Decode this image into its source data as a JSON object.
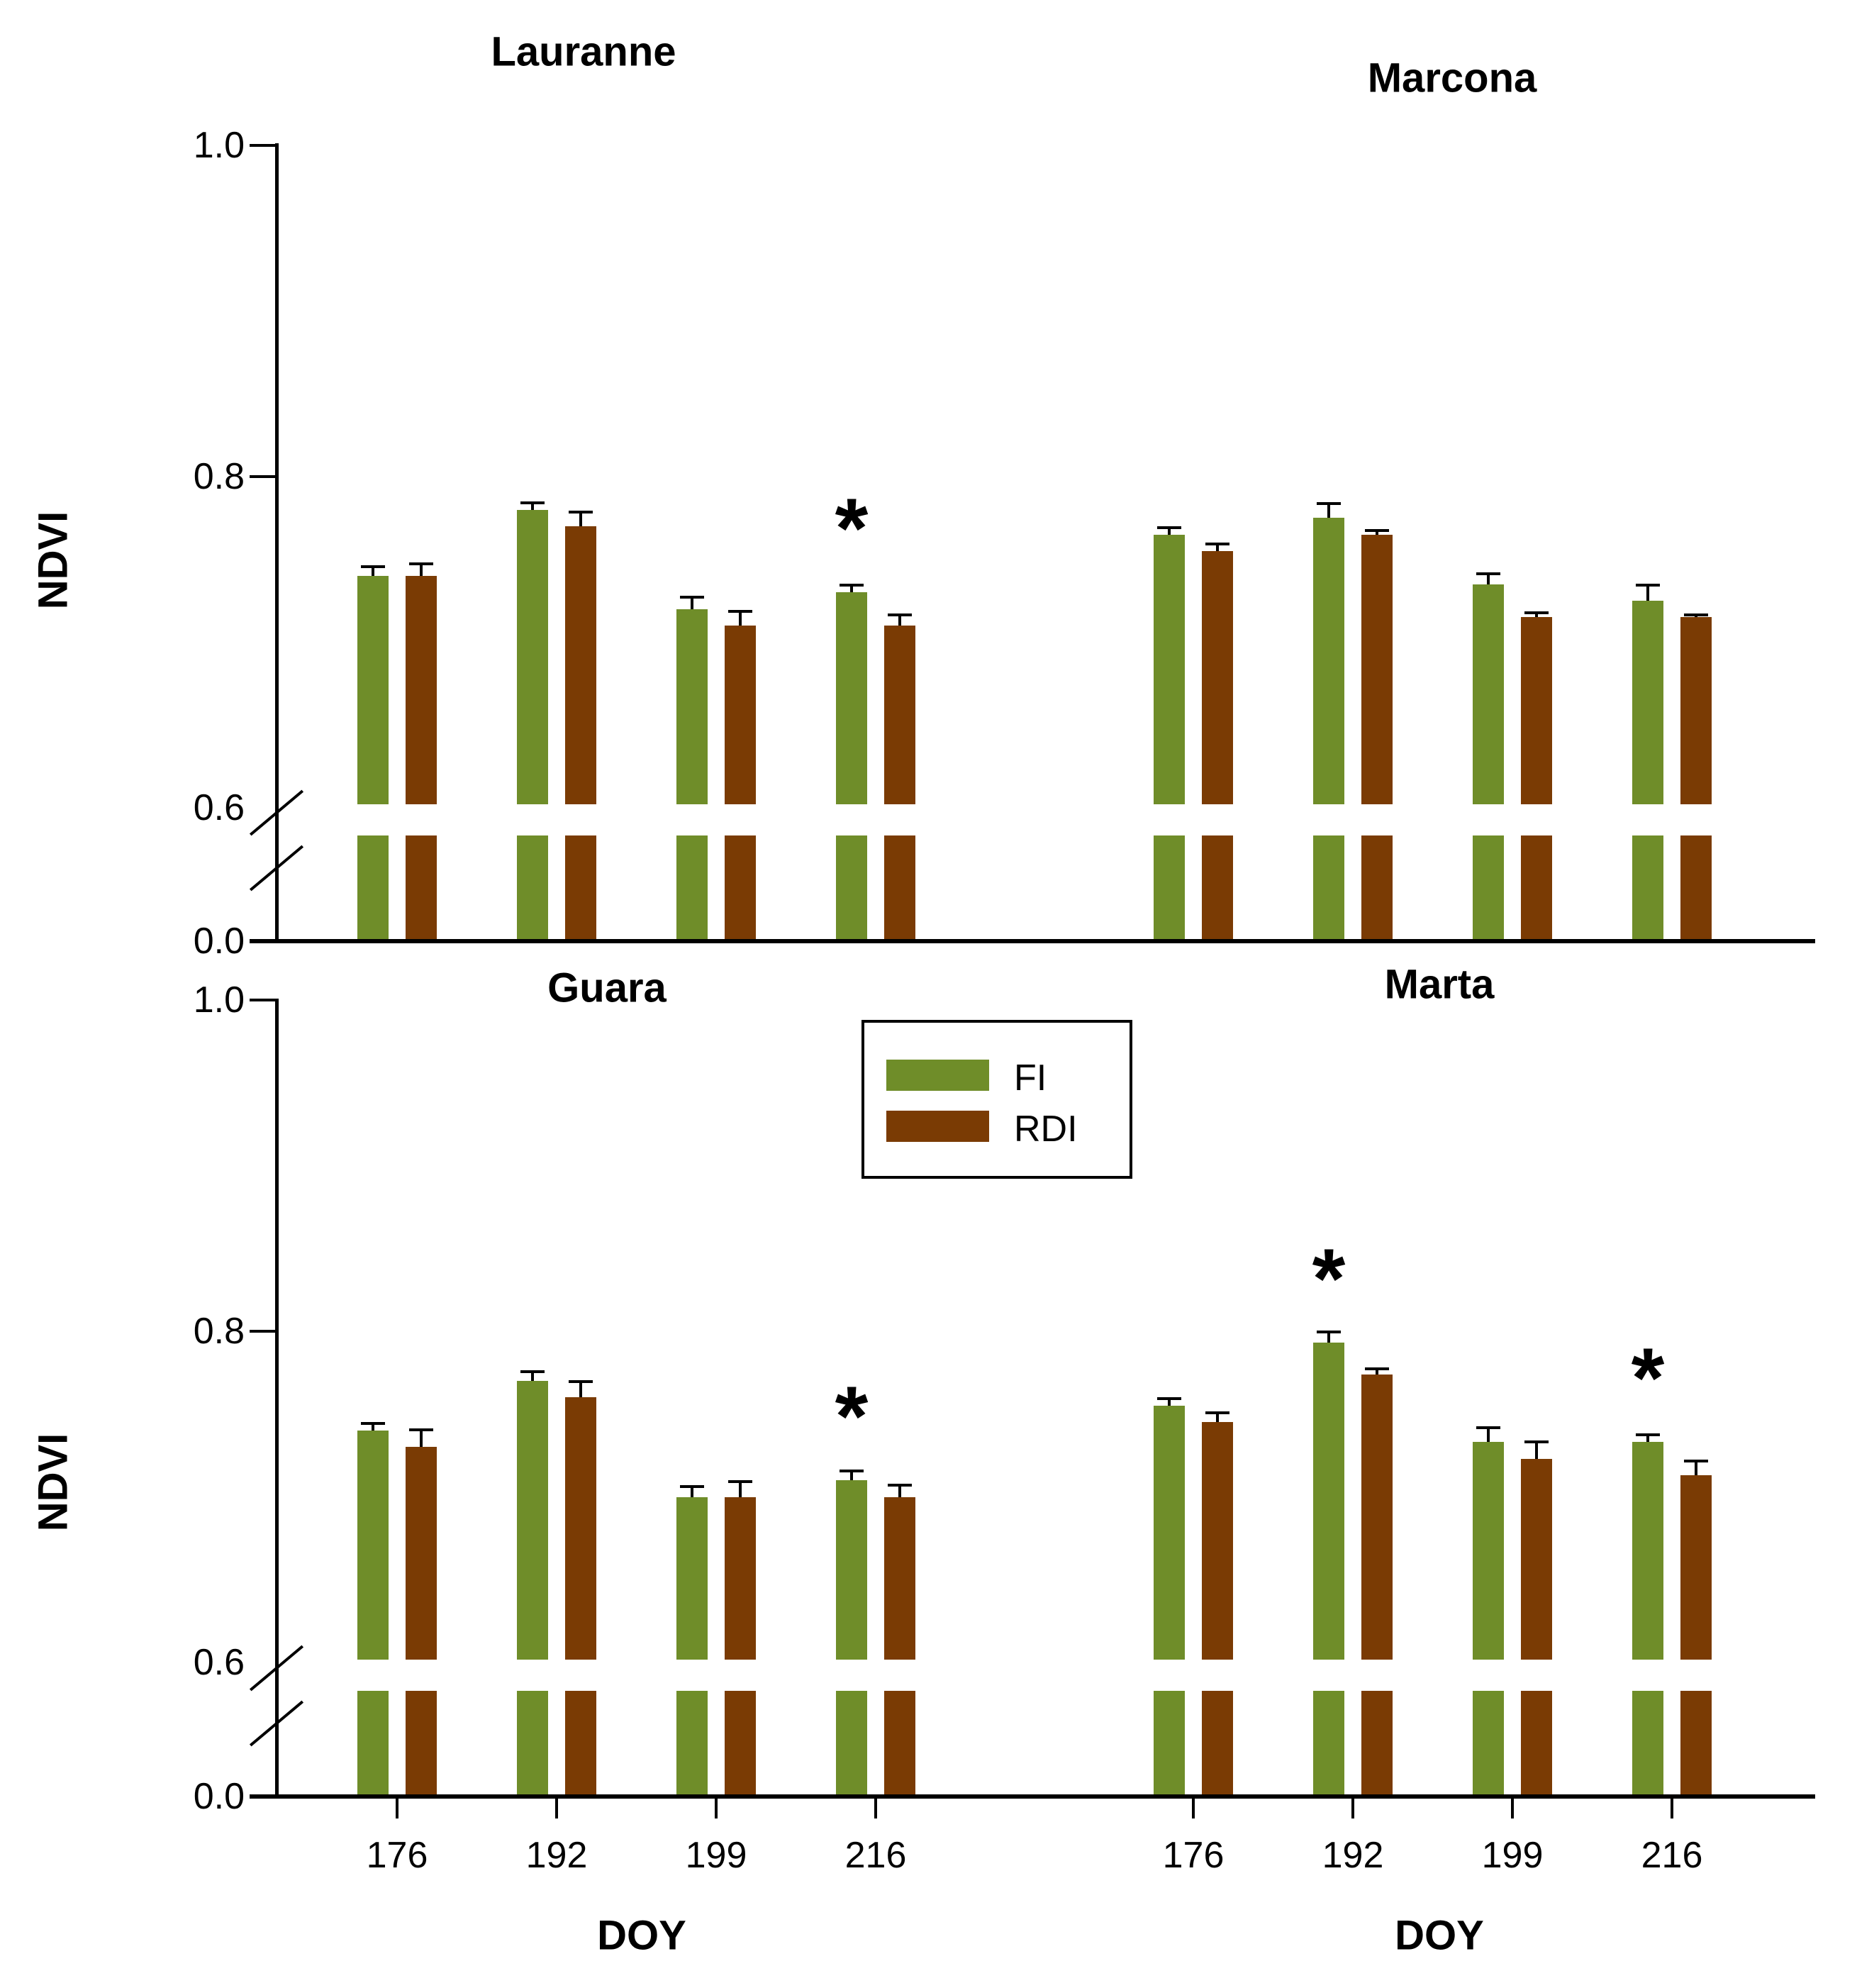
{
  "axes": {
    "y_label": "NDVI",
    "x_label": "DOY",
    "y_ticks": [
      "0.0",
      "0.6",
      "0.8",
      "1.0"
    ],
    "x_ticks": [
      "176",
      "192",
      "199",
      "216"
    ],
    "y_axis_break": "axis broken between 0.0 and 0.6 (double slash marks, bars drawn with a gap)"
  },
  "annotations": {
    "significance_marker": "*"
  },
  "colors": {
    "fi_green": "#6F8D29",
    "rdi_brown": "#7A3B04",
    "axis_black": "#000000",
    "background": "#FFFFFF"
  },
  "legend": {
    "items": [
      {
        "label": "FI",
        "color": "#6F8D29"
      },
      {
        "label": "RDI",
        "color": "#7A3B04"
      }
    ]
  },
  "chart_data": [
    {
      "type": "bar",
      "position": "top-left",
      "title": "Lauranne",
      "xlabel": "",
      "ylabel": "NDVI",
      "ylim": [
        0.0,
        1.0
      ],
      "grid": false,
      "x_tick_labels_shown": false,
      "categories": [
        "176",
        "192",
        "199",
        "216"
      ],
      "series": [
        {
          "name": "FI",
          "color": "#6F8D29",
          "values": [
            0.74,
            0.78,
            0.72,
            0.73
          ],
          "errors": [
            0.005,
            0.004,
            0.007,
            0.004
          ]
        },
        {
          "name": "RDI",
          "color": "#7A3B04",
          "values": [
            0.74,
            0.77,
            0.71,
            0.71
          ],
          "errors": [
            0.007,
            0.008,
            0.008,
            0.006
          ]
        }
      ],
      "fi_significant": [
        false,
        false,
        false,
        true
      ]
    },
    {
      "type": "bar",
      "position": "top-right",
      "title": "Marcona",
      "xlabel": "",
      "ylabel": "NDVI",
      "ylim": [
        0.0,
        1.0
      ],
      "grid": false,
      "x_tick_labels_shown": false,
      "categories": [
        "176",
        "192",
        "199",
        "216"
      ],
      "series": [
        {
          "name": "FI",
          "color": "#6F8D29",
          "values": [
            0.765,
            0.775,
            0.735,
            0.725
          ],
          "errors": [
            0.004,
            0.008,
            0.006,
            0.009
          ]
        },
        {
          "name": "RDI",
          "color": "#7A3B04",
          "values": [
            0.755,
            0.765,
            0.715,
            0.715
          ],
          "errors": [
            0.004,
            0.002,
            0.002,
            0.001
          ]
        }
      ],
      "fi_significant": [
        false,
        false,
        false,
        false
      ]
    },
    {
      "type": "bar",
      "position": "bottom-left",
      "title": "Guara",
      "xlabel": "DOY",
      "ylabel": "NDVI",
      "ylim": [
        0.0,
        1.0
      ],
      "grid": false,
      "x_tick_labels_shown": true,
      "categories": [
        "176",
        "192",
        "199",
        "216"
      ],
      "series": [
        {
          "name": "FI",
          "color": "#6F8D29",
          "values": [
            0.74,
            0.77,
            0.7,
            0.71
          ],
          "errors": [
            0.004,
            0.005,
            0.006,
            0.005
          ]
        },
        {
          "name": "RDI",
          "color": "#7A3B04",
          "values": [
            0.73,
            0.76,
            0.7,
            0.7
          ],
          "errors": [
            0.01,
            0.009,
            0.009,
            0.007
          ]
        }
      ],
      "fi_significant": [
        false,
        false,
        false,
        true
      ]
    },
    {
      "type": "bar",
      "position": "bottom-right",
      "title": "Marta",
      "xlabel": "DOY",
      "ylabel": "NDVI",
      "ylim": [
        0.0,
        1.0
      ],
      "grid": false,
      "x_tick_labels_shown": true,
      "categories": [
        "176",
        "192",
        "199",
        "216"
      ],
      "series": [
        {
          "name": "FI",
          "color": "#6F8D29",
          "values": [
            0.755,
            0.793,
            0.733,
            0.733
          ],
          "errors": [
            0.004,
            0.006,
            0.008,
            0.004
          ]
        },
        {
          "name": "RDI",
          "color": "#7A3B04",
          "values": [
            0.745,
            0.774,
            0.723,
            0.713
          ],
          "errors": [
            0.005,
            0.003,
            0.01,
            0.008
          ]
        }
      ],
      "fi_significant": [
        false,
        true,
        false,
        true
      ]
    }
  ]
}
